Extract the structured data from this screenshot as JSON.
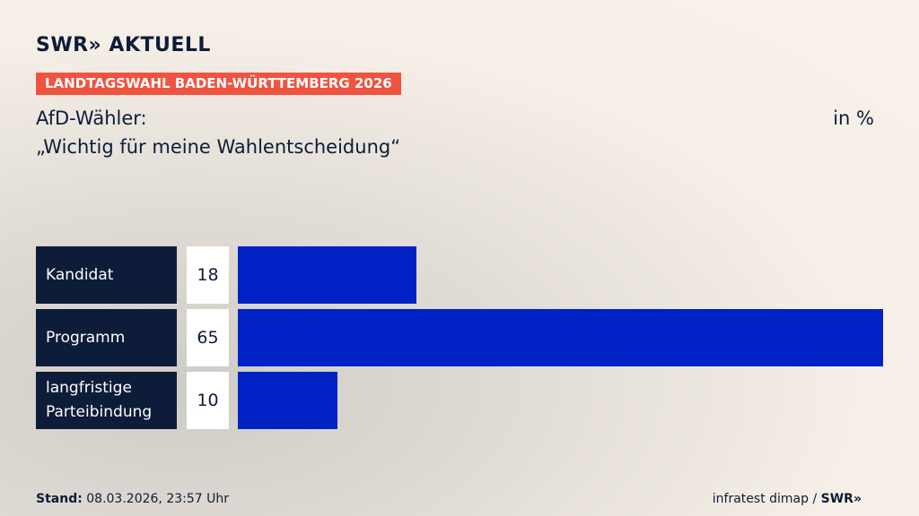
{
  "header": {
    "logo": "SWR» AKTUELL",
    "badge": "LANDTAGSWAHL BADEN-WÜRTTEMBERG 2026",
    "title_line1": "AfD-Wähler:",
    "title_line2": "„Wichtig für meine Wahlentscheidung“",
    "unit": "in %"
  },
  "chart_data": {
    "type": "bar",
    "orientation": "horizontal",
    "categories": [
      "Kandidat",
      "Programm",
      "langfristige Parteibindung"
    ],
    "values": [
      18,
      65,
      10
    ],
    "bar_color": "#0021c4",
    "xlim": [
      0,
      65
    ],
    "grid": false
  },
  "footer": {
    "stand_label": "Stand:",
    "stand_value": " 08.03.2026, 23:57 Uhr",
    "source": "infratest dimap / ",
    "source_brand": "SWR»"
  },
  "colors": {
    "accent": "#f0533f",
    "navy": "#0d1c38",
    "bar": "#0021c4"
  }
}
